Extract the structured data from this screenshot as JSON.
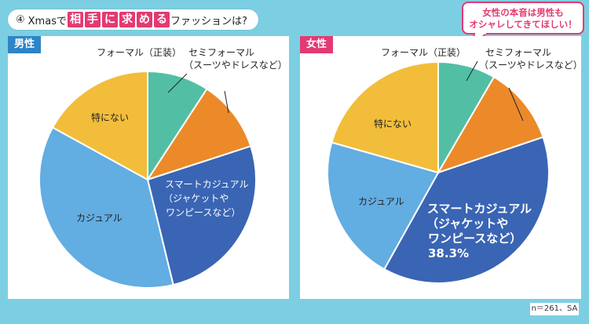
{
  "title": {
    "number": "④",
    "prefix": "Xmasで",
    "highlights": [
      "相",
      "手",
      "に",
      "求",
      "め",
      "る"
    ],
    "suffix": "ファッションは?"
  },
  "bubble": {
    "line1": "女性の本音は男性も",
    "line2": "オシャレしてきてほしい！"
  },
  "footnote": "n＝261、SA",
  "colors": {
    "formal": "#52bfa5",
    "semi_formal": "#ec8a2a",
    "smart_casual": "#3a65b4",
    "casual": "#62ade2",
    "none": "#f2bd3a",
    "male_tag": "#2d84c8",
    "female_tag": "#e33a72"
  },
  "chart_data": [
    {
      "type": "pie",
      "panel_label": "男性",
      "slices": [
        {
          "label": "フォーマル（正装）",
          "value": 9.2,
          "color": "#52bfa5"
        },
        {
          "label": "セミフォーマル（スーツやドレスなど）",
          "value": 10.8,
          "color": "#ec8a2a"
        },
        {
          "label": "スマートカジュアル（ジャケットやワンピースなど）",
          "value": 26.2,
          "color": "#3a65b4"
        },
        {
          "label": "カジュアル",
          "value": 36.8,
          "color": "#62ade2"
        },
        {
          "label": "特にない",
          "value": 17.0,
          "color": "#f2bd3a"
        }
      ]
    },
    {
      "type": "pie",
      "panel_label": "女性",
      "slices": [
        {
          "label": "フォーマル（正装）",
          "value": 8.4,
          "color": "#52bfa5"
        },
        {
          "label": "セミフォーマル（スーツやドレスなど）",
          "value": 11.4,
          "color": "#ec8a2a"
        },
        {
          "label": "スマートカジュアル（ジャケットやワンピースなど）",
          "value": 38.3,
          "value_label": "38.3%",
          "color": "#3a65b4"
        },
        {
          "label": "カジュアル",
          "value": 21.3,
          "color": "#62ade2"
        },
        {
          "label": "特にない",
          "value": 20.6,
          "color": "#f2bd3a"
        }
      ]
    }
  ],
  "labels": {
    "formal": "フォーマル（正装）",
    "semi_line1": "セミフォーマル",
    "semi_line2": "（スーツやドレスなど）",
    "smart_line1": "スマートカジュアル",
    "smart_line2": "（ジャケットや",
    "smart_line3": "ワンピースなど）",
    "casual": "カジュアル",
    "none": "特にない"
  }
}
